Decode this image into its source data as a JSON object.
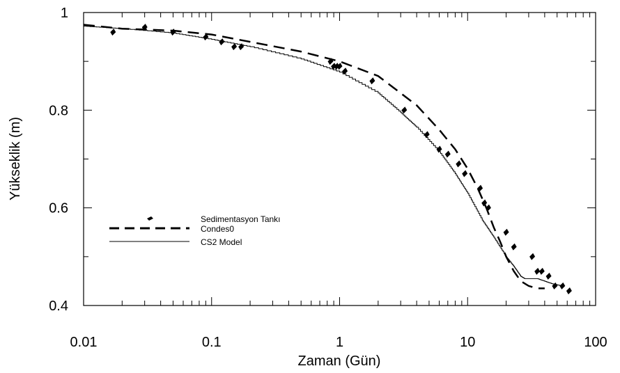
{
  "chart_data": {
    "type": "scatter",
    "title": "",
    "xlabel": "Zaman (Gün)",
    "ylabel": "Yükseklik (m)",
    "xscale": "log",
    "xlim": [
      0.01,
      100
    ],
    "ylim": [
      0.4,
      1.0
    ],
    "x_tick_labels": [
      "0.01",
      "0.1",
      "1",
      "10",
      "100"
    ],
    "y_tick_labels": [
      "0.4",
      "0.6",
      "0.8",
      "1"
    ],
    "grid": false,
    "legend_position": "center-left",
    "series": [
      {
        "name": "Sedimentasyon Tankı",
        "style": "markers",
        "color": "#000000",
        "x": [
          0.017,
          0.03,
          0.05,
          0.09,
          0.12,
          0.15,
          0.17,
          0.85,
          0.9,
          0.95,
          1.0,
          1.1,
          1.8,
          3.2,
          4.8,
          6.0,
          7.0,
          8.5,
          9.5,
          12.5,
          13.5,
          14.5,
          20,
          23,
          32,
          35,
          38,
          43,
          48,
          55,
          62
        ],
        "y": [
          0.96,
          0.97,
          0.96,
          0.95,
          0.94,
          0.93,
          0.93,
          0.9,
          0.89,
          0.89,
          0.89,
          0.88,
          0.86,
          0.8,
          0.75,
          0.72,
          0.71,
          0.69,
          0.67,
          0.64,
          0.61,
          0.6,
          0.55,
          0.52,
          0.5,
          0.47,
          0.47,
          0.46,
          0.44,
          0.44,
          0.43
        ]
      },
      {
        "name": "Condes0",
        "style": "dashed",
        "color": "#000000",
        "x": [
          0.01,
          0.02,
          0.05,
          0.1,
          0.2,
          0.5,
          1.0,
          2.0,
          4.0,
          6.0,
          8.0,
          10,
          12,
          14,
          16,
          18,
          20,
          23,
          26,
          30,
          35,
          40
        ],
        "y": [
          0.975,
          0.967,
          0.963,
          0.955,
          0.94,
          0.92,
          0.9,
          0.87,
          0.81,
          0.76,
          0.72,
          0.68,
          0.64,
          0.6,
          0.56,
          0.53,
          0.5,
          0.47,
          0.45,
          0.44,
          0.435,
          0.435
        ]
      },
      {
        "name": "CS2 Model",
        "style": "step",
        "color": "#000000",
        "x": [
          0.01,
          0.02,
          0.05,
          0.1,
          0.2,
          0.5,
          1.0,
          2.0,
          3.0,
          4.0,
          6.0,
          8.0,
          10,
          13,
          16,
          20,
          23,
          26,
          28,
          35,
          45,
          55
        ],
        "y": [
          0.972,
          0.967,
          0.958,
          0.945,
          0.93,
          0.905,
          0.878,
          0.835,
          0.795,
          0.765,
          0.715,
          0.67,
          0.63,
          0.575,
          0.54,
          0.5,
          0.48,
          0.46,
          0.455,
          0.455,
          0.445,
          0.44
        ]
      }
    ]
  }
}
